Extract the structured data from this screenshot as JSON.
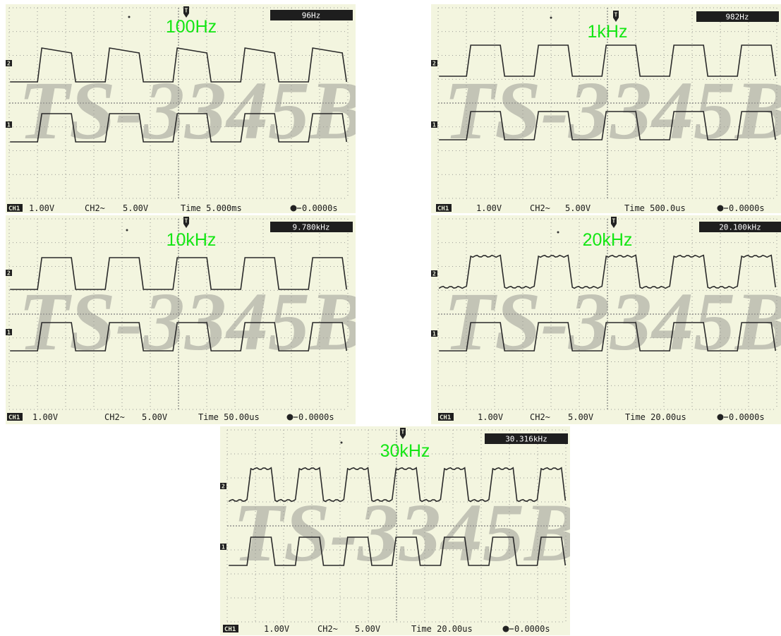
{
  "panels": [
    {
      "label": "100Hz",
      "frequency": "96Hz",
      "ch1": {
        "name": "CH1",
        "scale": "1.00V"
      },
      "ch2": {
        "name": "CH2~",
        "scale": "5.00V"
      },
      "time": "Time 5.000ms",
      "trigger": "0.0000s",
      "watermark": "TS-3345B",
      "periods_shown": 5
    },
    {
      "label": "1kHz",
      "frequency": "982Hz",
      "ch1": {
        "name": "CH1",
        "scale": "1.00V"
      },
      "ch2": {
        "name": "CH2~",
        "scale": "5.00V"
      },
      "time": "Time 500.0us",
      "trigger": "0.0000s",
      "watermark": "TS-3345B",
      "periods_shown": 5
    },
    {
      "label": "10kHz",
      "frequency": "9.780kHz",
      "ch1": {
        "name": "CH1",
        "scale": "1.00V"
      },
      "ch2": {
        "name": "CH2~",
        "scale": "5.00V"
      },
      "time": "Time 50.00us",
      "trigger": "0.0000s",
      "watermark": "TS-3345B",
      "periods_shown": 5
    },
    {
      "label": "20kHz",
      "frequency": "20.100kHz",
      "ch1": {
        "name": "CH1",
        "scale": "1.00V"
      },
      "ch2": {
        "name": "CH2~",
        "scale": "5.00V"
      },
      "time": "Time 20.00us",
      "trigger": "0.0000s",
      "watermark": "TS-3345B",
      "periods_shown": 5
    },
    {
      "label": "30kHz",
      "frequency": "30.316kHz",
      "ch1": {
        "name": "CH1",
        "scale": "1.00V"
      },
      "ch2": {
        "name": "CH2~",
        "scale": "5.00V"
      },
      "time": "Time 20.00us",
      "trigger": "0.0000s",
      "watermark": "TS-3345B",
      "periods_shown": 7
    }
  ],
  "colors": {
    "screen": "#f3f5df",
    "trace": "#2a2a2a",
    "grid": "#7e7e7e",
    "label": "#14e614"
  }
}
